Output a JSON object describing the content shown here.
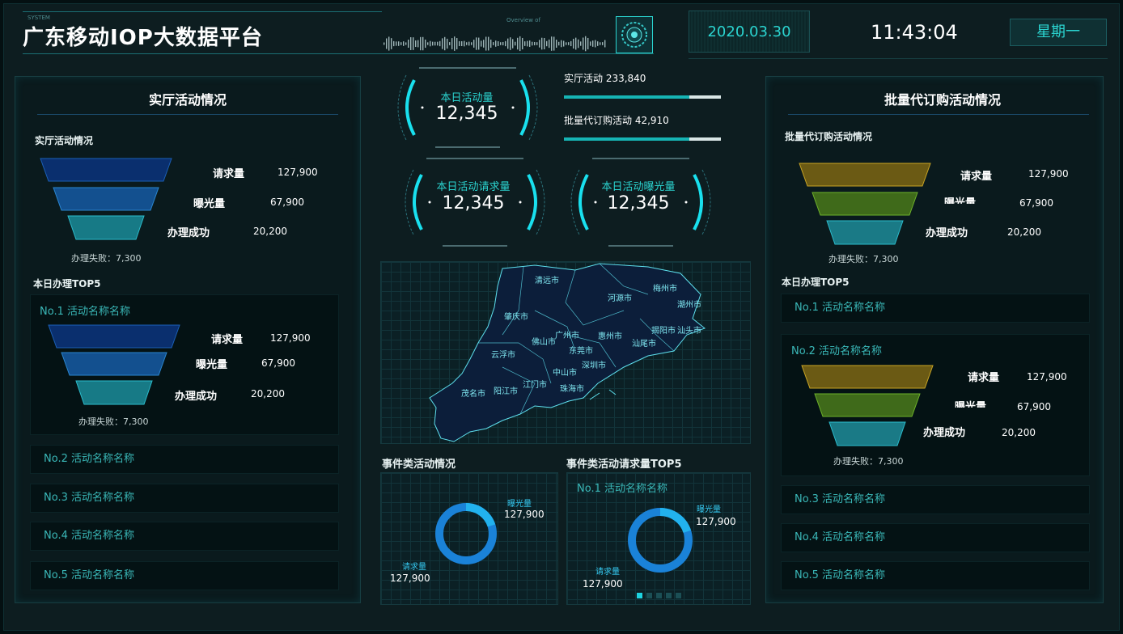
{
  "header": {
    "system_tag": "SYSTEM",
    "title": "广东移动IOP大数据平台",
    "overview_tag": "Overview of",
    "date": "2020.03.30",
    "time": "11:43:04",
    "weekday": "星期一"
  },
  "left": {
    "title": "实厅活动情况",
    "funnel_heading": "实厅活动情况",
    "funnel": {
      "rows": [
        {
          "label": "请求量",
          "value": "127,900"
        },
        {
          "label": "曝光量",
          "value": "67,900"
        },
        {
          "label": "办理成功",
          "value": "20,200"
        }
      ],
      "fail": "办理失败：7,300"
    },
    "top5_heading": "本日办理TOP5",
    "top1": {
      "name": "No.1 活动名称名称",
      "rows": [
        {
          "label": "请求量",
          "value": "127,900"
        },
        {
          "label": "曝光量",
          "value": "67,900"
        },
        {
          "label": "办理成功",
          "value": "20,200"
        }
      ],
      "fail": "办理失败：7,300"
    },
    "others": [
      "No.2 活动名称名称",
      "No.3 活动名称名称",
      "No.4 活动名称名称",
      "No.5 活动名称名称"
    ]
  },
  "center": {
    "gauges": [
      {
        "label": "本日活动量",
        "value": "12,345"
      },
      {
        "label": "本日活动请求量",
        "value": "12,345"
      },
      {
        "label": "本日活动曝光量",
        "value": "12,345"
      }
    ],
    "bars": [
      {
        "label": "实厅活动 233,840",
        "progress": 0.8
      },
      {
        "label": "批量代订购活动 42,910",
        "progress": 0.8
      }
    ],
    "map_cities": [
      "清远市",
      "河源市",
      "梅州市",
      "潮州市",
      "肇庆市",
      "广州市",
      "惠州市",
      "揭阳市",
      "汕头市",
      "佛山市",
      "东莞市",
      "汕尾市",
      "云浮市",
      "深圳市",
      "中山市",
      "江门市",
      "茂名市",
      "阳江市",
      "珠海市"
    ],
    "event_title": "事件类活动情况",
    "event_donut": {
      "a_label": "曝光量",
      "a_value": "127,900",
      "b_label": "请求量",
      "b_value": "127,900",
      "a_share": 0.2
    },
    "top5_title": "事件类活动请求量TOP5",
    "top5_card": {
      "name": "No.1 活动名称名称",
      "a_label": "曝光量",
      "a_value": "127,900",
      "b_label": "请求量",
      "b_value": "127,900",
      "a_share": 0.2
    },
    "page_count": 5,
    "active_page": 0
  },
  "right": {
    "title": "批量代订购活动情况",
    "funnel_heading": "批量代订购活动情况",
    "funnel": {
      "rows": [
        {
          "label": "请求量",
          "value": "127,900"
        },
        {
          "label": "曝光量",
          "value": "67,900"
        },
        {
          "label": "办理成功",
          "value": "20,200"
        }
      ],
      "fail": "办理失败：7,300"
    },
    "top5_heading": "本日办理TOP5",
    "no1": "No.1 活动名称名称",
    "no2": {
      "name": "No.2 活动名称名称",
      "rows": [
        {
          "label": "请求量",
          "value": "127,900"
        },
        {
          "label": "曝光量",
          "value": "67,900"
        },
        {
          "label": "办理成功",
          "value": "20,200"
        }
      ],
      "fail": "办理失败：7,300"
    },
    "others": [
      "No.3 活动名称名称",
      "No.4 活动名称名称",
      "No.5 活动名称名称"
    ]
  },
  "colors": {
    "accent": "#2bd4d0",
    "blue_funnel": [
      "#0a2f6e",
      "#13508f",
      "#177a86"
    ],
    "gold_funnel": [
      "#6b5a14",
      "#3f6a1a",
      "#1a7a86"
    ]
  }
}
